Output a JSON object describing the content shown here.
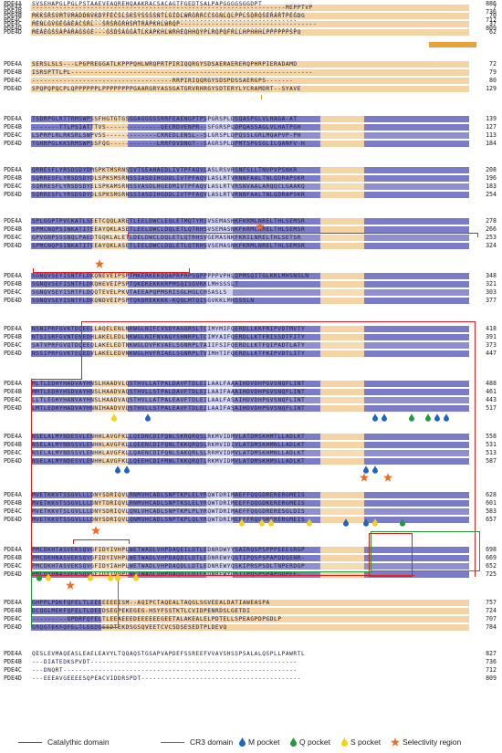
{
  "sequence_names": [
    "PDE4A",
    "PDE4B",
    "PDE4C",
    "PDE4D"
  ],
  "blocks": [
    {
      "rows": [
        {
          "seq": "-----------------------------------------------------------------MEPPTVP",
          "end": "7"
        },
        {
          "seq": "MKKSRSVMTVMADDNVKDYFECSLSKSYSSSSNTLGIDLWRGRRCCSGNLQLPPLSQRQSERARTPEGDG",
          "end": "70"
        },
        {
          "seq": "MENLGVGEGAEACSRL--SRSRGRHSMTRAPKHLWRQP-----------------------------------",
          "end": "37"
        },
        {
          "seq": "MEAEGSSAPARAGSGE---GSDSAGGATLKAPKHLWRHEQHHQYPLRQPQFRLLHPHHHLPPPPPPSPQ",
          "end": "62"
        }
      ]
    },
    {
      "rows": [
        {
          "seq": "SERSLSLS---LPGPREGGATLKPPPQHLWRQPRTPIRIQQRGYSDSAERAERERQPHRPIERADAMD",
          "end": "72"
        },
        {
          "seq": "ISRSPTTLPL--------------------------------------------------------------",
          "end": "79"
        },
        {
          "seq": "------------------------------------RRPIRIQQRGYSDSPDSSAERGPS-------",
          "end": "80"
        },
        {
          "seq": "SPQPQPQCPLQPPPPPPLPPPPPPPPGAARGRYASSGATGRVRHRGYSDTERYLYCRAMDRT--SYAVE",
          "end": "129"
        }
      ]
    },
    {
      "rows": [
        {
          "seq": "TSDRPGLRTTRMSWPSSFHGTGTGSGGAGGGSSRRFEAENGPTPSPGRSPLDSQASPGLVLHAGA-AT",
          "end": "139"
        },
        {
          "seq": "-------TTLPSIATTTVS--------------QECRDVENPR--SFGRSPLDPQASSAGLVLHATPGH",
          "end": "127"
        },
        {
          "seq": "LSPRPLRLRKSRLSWPVSS-------------CRREDLENSL--SLGRSPLDPQSSLGRLMQAPVP-PH",
          "end": "113"
        },
        {
          "seq": "TGHRPGLKKSRMSWPSSFQG------------LRRFDVDNGT--SAGRSPLDPMTSPGSGLILQANFV-H",
          "end": "184"
        }
      ]
    },
    {
      "rows": [
        {
          "seq": "QRRESFLYRSDSDYDMSPKTMSRNSSVTSEAHAEDLIVTPFAQVLASLRSVRSNFSLLTNVPVPSNKR",
          "end": "208"
        },
        {
          "seq": "SQRRESFLYRSDSDYDLSPKSMSRNSSIASDIHGDDLIVTPFAQVLASLRTVRNNFAALTNLQDRAPSKR",
          "end": "196"
        },
        {
          "seq": "SQRRESFLYRSDSDYELSPKAMSRNSSVASDLHGEDMIVTPFAQVLASLRTVRSNVAALARQQCLGAAKQ",
          "end": "183"
        },
        {
          "seq": "SQRRESFLYRSDSDYDLSPKSMSRNSSIASDIHGDDLIVTPFAQVLASLRTVRNNFAALTNLQDRAPSKR",
          "end": "254"
        }
      ]
    },
    {
      "rows": [
        {
          "seq": "SPLGGPTPVCKATLSEETCQQLARETLEELDWCLEQLETMQTYRSVSEMASHKFKRMLNRELTHLSEMSR",
          "end": "278"
        },
        {
          "seq": "SPMCNQPSINKATITEEAYQKLASETLEELDWCLDQLETLQTRHSVSEMASNKFKRMLNRELTHLSEMSR",
          "end": "266"
        },
        {
          "seq": "GPVGNPSSSNQLPAEDTGQKLALETLDELDWCLDQLETLQTRHSVGEMASNKFKRILNRELTHLSETSR",
          "end": "253"
        },
        {
          "seq": "SPMCNQPSINKATITEEAYQKLASETLEELDWCLDQLETLQTRHSVSEMASNKFKRMLNRELTHLSEMSR",
          "end": "324"
        }
      ]
    },
    {
      "rows": [
        {
          "seq": "SGNQVSEYISNTFLDKQNEVEIPSPTMKERKEKQQAPRPRPSQPPPPPVPHLQPMSQITGLKKLMHSNSLN",
          "end": "348"
        },
        {
          "seq": "SGNQVSEFISNTFLDKQHEVEIPSPTQKEKEKKKRPMSQISGVKKLMHSSSLT",
          "end": "321"
        },
        {
          "seq": "SGNQVSEYISRTFLDQQTEVELPKVTAEEAPQPMSRISGLHGLCHSASLS",
          "end": "303"
        },
        {
          "seq": "SGNQVSEYISNTFLDKQNDVEIPSPTQKDREKKKK-KQQLMTQISGVKKLMHSSSLN",
          "end": "377"
        }
      ]
    },
    {
      "rows": [
        {
          "seq": "NSNIPRFGVKTDQEELLAQELENLNKWGLNIFCVSDYAGGRSLTCIMYMIFQERDLLKKFRIPVDTMVTY",
          "end": "418"
        },
        {
          "seq": "NTSISRFGVNTENEDHLAKELEDLNKWGLNIFNVAGYSHNRPLTCIMYAIFQERDLLKTFRISSDTFITY",
          "end": "391"
        },
        {
          "seq": "SATVPRFGVQTDQEEQLAKELEDTNKWGLDVFKVAELSGNRPLTAIIFSIFQERDLLKTFQIPADTLATY",
          "end": "373"
        },
        {
          "seq": "NSSIPRFGVKTEQEDVLAKELEDVNKWGLHVFRIAELSGNRPLTVIMHTIFQERDLLKTFKIPVDTLITY",
          "end": "447"
        }
      ]
    },
    {
      "rows": [
        {
          "seq": "MLTLEDHYHADVAYHNSLHAADVLQSTHVLLATPALDAVFTDLEILAALFAAAIHDVDHPGVSNQFLINT",
          "end": "488"
        },
        {
          "seq": "MMTLEDHYHSDVAYHNSLHAADVAQSTHVLLSTPALDAVFTDLEILAAIFAAAIHDVDHPGVSNQFLINT",
          "end": "461"
        },
        {
          "seq": "LLTLEGHYHANVAYHNSLHAADVAQSTHVLLATPALEAVFTDLEILAALFASAIHDVDHPGVSNQFLINT",
          "end": "443"
        },
        {
          "seq": "LMTLEDHYHADVAYHNNIHAADVVQSTHVLLSTPALEAVFTDLEILAAIFASAIHDVDHPGVSNQFLINT",
          "end": "517"
        }
      ]
    },
    {
      "rows": [
        {
          "seq": "NSELALMYNDESVLENHHLAVGFKLLQEDNCDIFQNLSKRQRQSLRKMVIDMVLATDMSKHMTLLADLKT",
          "end": "558"
        },
        {
          "seq": "NSELALMYNDSSVLENHHLAVGFKLLQEENCDIFQNLTKKQRQSLRKMVIDIVLATDMSKHMNLLADLKT",
          "end": "531"
        },
        {
          "seq": "NSELALMYNDSSVLENHHLAVGFKLLQAENCDIFQNLSAKQRLSLRRMVIDMVLATDMSKHMNLLADLKT",
          "end": "513"
        },
        {
          "seq": "NSELALMYNDESVLENHHLAVGFKLLQEEHCDIFMNLTKKQRQTLRKMVIDMVLATDMSKHMSLLADLKT",
          "end": "587"
        }
      ]
    },
    {
      "rows": [
        {
          "seq": "MVETKKVTSSGVLLLDNYSDRIQVLRNMVHCADLSNPTKPLELYRQWTDRIMAEFFQQGDRERERGMEIS",
          "end": "628"
        },
        {
          "seq": "MVETKKVTSSGVLLLDNYTDRIQVLRNMVHCADLSNPTKSLELYRQWTDRIMEEFFQQGDKERERGMEIS",
          "end": "601"
        },
        {
          "seq": "MVETKKVTSLGVLLLDNYSDRIQVLQNLVHCADLSNPTKPLPLYRQWTDRIMAEFFQQGDRERESGLDIS",
          "end": "583"
        },
        {
          "seq": "MVETKKVTSSGVLLLDNYSDRIQVLQNMVHCADLSNPTKPLQLYRQWTDRIMEEFFRQGDRERERGMEIS",
          "end": "657"
        }
      ]
    },
    {
      "rows": [
        {
          "seq": "PMCDKHTASVEKSQVGFIDYIVHPLWETWADLVHPDAQEILDTLEDNRDWYYSAIRQSPSPPPEEESRGP",
          "end": "698"
        },
        {
          "seq": "PMCDKHNASVEKSQVGFIDYIVHPLWETWADLVHPDAQDILDTLEDNREWYQSTIPQSPSPAPDDQENR-",
          "end": "669"
        },
        {
          "seq": "PMCDKHTASVEKSQVGFIDYIAHPLWETWADLVHPDAQDLLDTLEDNREWYQSKIPRSPSDLTNPERDGP",
          "end": "652"
        },
        {
          "seq": "PMCDKHNASVEKSQVGFIDYIVHPLWETWADLVHPDAQDILDTLEDNREWYQSTIPQSPSPAPDDPEE-",
          "end": "725"
        }
      ]
    },
    {
      "rows": [
        {
          "seq": "GHPPLPDKFQFELTLEEEEEEEISM--AQIPCTAQEALTAQGLSGVEEALDATIAWEASPA",
          "end": "757"
        },
        {
          "seq": "DCQGLMEKFQFELTLDEEDSEGPEKEGEG-HSYFSSTKTLCVIDPENRDSLGETDI",
          "end": "724"
        },
        {
          "seq": "---------GPDRFQFELTLEEAEEEDEEEEEEGEETALAKEALELPDTELLSPEAGPDPGDLP",
          "end": "707"
        },
        {
          "seq": "GRQGTEKFQFELTLEEDGESDTEKDSGSQVEETCVCSDSESEDTPLDEVQ",
          "end": "784"
        }
      ]
    },
    {
      "rows": [
        {
          "seq": "QESLEVMAQEASLEAELEAVYLTQQAQSTGSAPVAPDEFSSREEFVVAVSHSSPSALALQSPLLPAWRTL",
          "end": "827"
        },
        {
          "seq": "---DIATEDKSPVDT-----------------------------------------------------",
          "end": "736"
        },
        {
          "seq": "---DNQRT------------------------------------------------------------",
          "end": "712"
        },
        {
          "seq": "---EEEAVGEEEESQPEACVIDDRSPDT-----------------------------------------",
          "end": "809"
        }
      ]
    },
    {
      "rows": [
        {
          "seq": "SVSEHAPGLPGLPSTAAEVEAQREHQAAKRACSACAGTFGEDTSALPAPGGGGSGGDPT",
          "end": "886"
        },
        {
          "seq": "--------------------------------------------------------------------",
          "end": "736"
        },
        {
          "seq": "--------------------------------------------------------------------",
          "end": "712"
        },
        {
          "seq": "--------------------------------------------------------------------",
          "end": "809"
        }
      ]
    }
  ],
  "legend": {
    "catalytic": "Catalythic domain",
    "cr3": "CR3 domain",
    "m_pocket": "M pocket",
    "q_pocket": "Q pocket",
    "s_pocket": "S pocket",
    "selectivity": "Selectivity region"
  },
  "colors": {
    "identical": "#7a7bc9",
    "similar": "#c7c8ee",
    "partial": "#f4d3a4",
    "catalytic": "#e02020",
    "cr3": "#1f9a3c",
    "m_pocket": "#1f63c6",
    "q_pocket": "#1f9a3c",
    "s_pocket": "#f2d21d",
    "selectivity": "#f06a22",
    "bar": "#e8a23a"
  }
}
